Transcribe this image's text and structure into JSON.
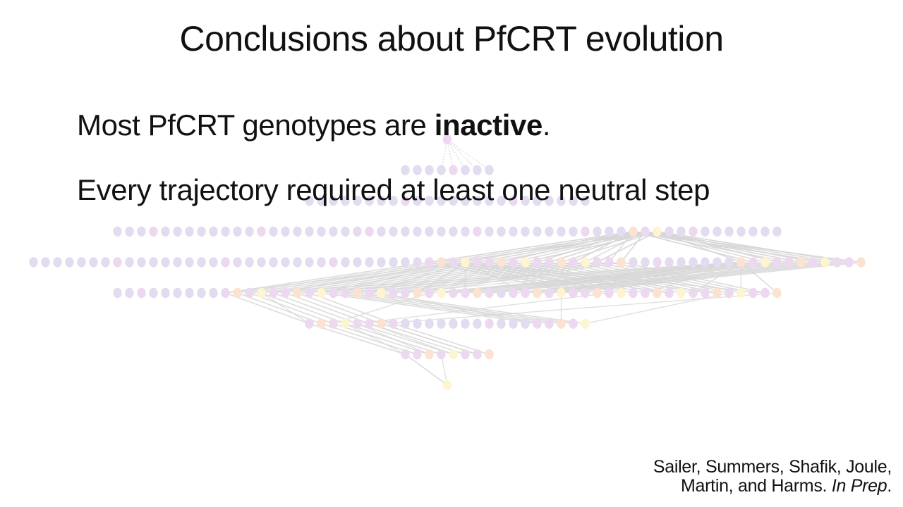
{
  "slide": {
    "title": "Conclusions about PfCRT evolution",
    "bullet_1": {
      "prefix": "Most PfCRT genotypes are ",
      "emphasis": "inactive",
      "suffix": "."
    },
    "bullet_2": "Every trajectory required at least one neutral step",
    "citation": {
      "authors_line_1": "Sailer, Summers, Shafik, Joule,",
      "authors_line_2": "Martin, and Harms. ",
      "status": "In Prep",
      "end": "."
    }
  },
  "network": {
    "layer_counts": [
      1,
      8,
      24,
      56,
      70,
      56,
      24,
      8,
      1
    ],
    "colors": {
      "inactive": "#e3dcf1",
      "intermediate": "#ecd9ef",
      "active_a": "#fbe2d1",
      "active_b": "#fdf4d2",
      "edge": "#d6d6d6"
    },
    "active_nodes": {
      "3": [
        43,
        44,
        45
      ],
      "4": [
        33,
        34,
        35,
        36,
        37,
        38,
        39,
        40,
        41,
        42,
        43,
        44,
        45,
        46,
        47,
        48,
        49,
        59,
        60,
        61,
        62,
        63,
        64,
        65,
        66,
        67,
        68,
        69
      ],
      "5": [
        9,
        10,
        11,
        12,
        13,
        14,
        15,
        16,
        17,
        18,
        19,
        20,
        21,
        22,
        23,
        24,
        25,
        26,
        27,
        28,
        29,
        30,
        31,
        33,
        34,
        35,
        36,
        37,
        38,
        39,
        40,
        41,
        42,
        43,
        44,
        45,
        46,
        47,
        48,
        49,
        50,
        51,
        52,
        53,
        54,
        55
      ],
      "6": [
        0,
        1,
        2,
        3,
        4,
        5,
        6,
        7,
        19,
        20,
        21,
        22,
        23
      ],
      "7": [
        0,
        1,
        2,
        3,
        4,
        5,
        6,
        7
      ],
      "8": [
        0
      ]
    }
  }
}
